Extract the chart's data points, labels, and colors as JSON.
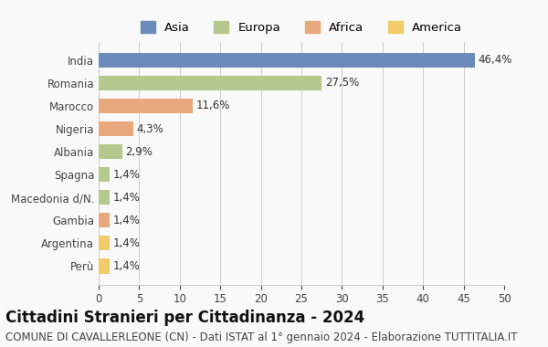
{
  "countries": [
    "India",
    "Romania",
    "Marocco",
    "Nigeria",
    "Albania",
    "Spagna",
    "Macedonia d/N.",
    "Gambia",
    "Argentina",
    "Perù"
  ],
  "values": [
    46.4,
    27.5,
    11.6,
    4.3,
    2.9,
    1.4,
    1.4,
    1.4,
    1.4,
    1.4
  ],
  "labels": [
    "46,4%",
    "27,5%",
    "11,6%",
    "4,3%",
    "2,9%",
    "1,4%",
    "1,4%",
    "1,4%",
    "1,4%",
    "1,4%"
  ],
  "continents": [
    "Asia",
    "Europa",
    "Africa",
    "Africa",
    "Europa",
    "Europa",
    "Europa",
    "Africa",
    "America",
    "America"
  ],
  "bar_colors": [
    "#6b8cba",
    "#b5c98e",
    "#e8a87c",
    "#e8a87c",
    "#b5c98e",
    "#b5c98e",
    "#b5c98e",
    "#e8a87c",
    "#f2cc6b",
    "#f2cc6b"
  ],
  "xlim": [
    0,
    50
  ],
  "xticks": [
    0,
    5,
    10,
    15,
    20,
    25,
    30,
    35,
    40,
    45,
    50
  ],
  "title": "Cittadini Stranieri per Cittadinanza - 2024",
  "subtitle": "COMUNE DI CAVALLERLEONE (CN) - Dati ISTAT al 1° gennaio 2024 - Elaborazione TUTTITALIA.IT",
  "legend_labels": [
    "Asia",
    "Europa",
    "Africa",
    "America"
  ],
  "legend_colors": [
    "#6b8cba",
    "#b5c98e",
    "#e8a87c",
    "#f2cc6b"
  ],
  "bg_color": "#f9f9f9",
  "grid_color": "#cccccc",
  "title_fontsize": 12,
  "subtitle_fontsize": 8.5,
  "label_fontsize": 8.5,
  "tick_fontsize": 8.5
}
